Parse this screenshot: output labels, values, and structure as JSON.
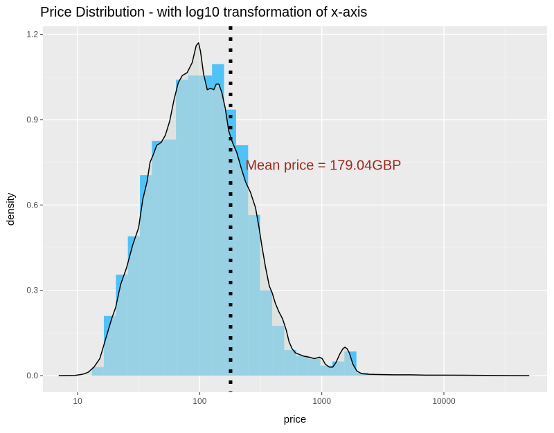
{
  "chart_data": {
    "type": "bar",
    "title": "Price Distribution - with log10 transformation of x-axis",
    "xlabel": "price",
    "ylabel": "density",
    "x_scale": "log10",
    "xlim": [
      5.2,
      70000
    ],
    "ylim": [
      -0.058,
      1.228
    ],
    "x_ticks": [
      10,
      100,
      1000,
      10000
    ],
    "x_tick_labels": [
      "10",
      "100",
      "1000",
      "10000"
    ],
    "y_ticks": [
      0.0,
      0.3,
      0.6,
      0.9,
      1.2
    ],
    "y_tick_labels": [
      "0.0",
      "0.3",
      "0.6",
      "0.9",
      "1.2"
    ],
    "grid": true,
    "histogram": {
      "name": "histogram",
      "color": "#4FC3F7",
      "bins": [
        {
          "from": 13.1,
          "to": 16.4,
          "value": 0.03
        },
        {
          "from": 16.4,
          "to": 20.6,
          "value": 0.21
        },
        {
          "from": 20.6,
          "to": 25.8,
          "value": 0.355
        },
        {
          "from": 25.8,
          "to": 32.4,
          "value": 0.49
        },
        {
          "from": 32.4,
          "to": 40.6,
          "value": 0.705
        },
        {
          "from": 40.6,
          "to": 50.9,
          "value": 0.825
        },
        {
          "from": 50.9,
          "to": 63.9,
          "value": 0.83
        },
        {
          "from": 63.9,
          "to": 80.2,
          "value": 1.04
        },
        {
          "from": 80.2,
          "to": 100.6,
          "value": 1.055
        },
        {
          "from": 100.6,
          "to": 126.2,
          "value": 1.055
        },
        {
          "from": 126.2,
          "to": 158.3,
          "value": 1.095
        },
        {
          "from": 158.3,
          "to": 198.6,
          "value": 0.935
        },
        {
          "from": 198.6,
          "to": 249.2,
          "value": 0.81
        },
        {
          "from": 249.2,
          "to": 312.7,
          "value": 0.565
        },
        {
          "from": 312.7,
          "to": 392.4,
          "value": 0.3
        },
        {
          "from": 392.4,
          "to": 492.3,
          "value": 0.175
        },
        {
          "from": 492.3,
          "to": 617.8,
          "value": 0.09
        },
        {
          "from": 617.8,
          "to": 775.1,
          "value": 0.07
        },
        {
          "from": 775.1,
          "to": 972.6,
          "value": 0.06
        },
        {
          "from": 972.6,
          "to": 1220.3,
          "value": 0.035
        },
        {
          "from": 1220.3,
          "to": 1531.2,
          "value": 0.05
        },
        {
          "from": 1531.2,
          "to": 1921.2,
          "value": 0.085
        },
        {
          "from": 1921.2,
          "to": 2410.8,
          "value": 0.01
        },
        {
          "from": 2410.8,
          "to": 3025,
          "value": 0.005
        },
        {
          "from": 3025,
          "to": 3795.6,
          "value": 0.004
        },
        {
          "from": 3795.6,
          "to": 4762.6,
          "value": 0.003
        },
        {
          "from": 4762.6,
          "to": 5975.9,
          "value": 0.003
        },
        {
          "from": 5975.9,
          "to": 7498.4,
          "value": 0.002
        },
        {
          "from": 7498.4,
          "to": 9408.7,
          "value": 0.002
        }
      ]
    },
    "density": {
      "name": "density",
      "fill": "#D5DDD5",
      "fill_opacity": 0.55,
      "line_color": "#000000",
      "points": [
        [
          7.0,
          0.0
        ],
        [
          9.5,
          0.001
        ],
        [
          11.0,
          0.005
        ],
        [
          12.2,
          0.012
        ],
        [
          13.6,
          0.03
        ],
        [
          15.2,
          0.06
        ],
        [
          17.0,
          0.13
        ],
        [
          19.0,
          0.2
        ],
        [
          20.5,
          0.24
        ],
        [
          22.5,
          0.32
        ],
        [
          25.2,
          0.38
        ],
        [
          28.3,
          0.46
        ],
        [
          31.6,
          0.52
        ],
        [
          34.2,
          0.62
        ],
        [
          37.0,
          0.68
        ],
        [
          39.2,
          0.75
        ],
        [
          41.5,
          0.775
        ],
        [
          44.5,
          0.81
        ],
        [
          48.4,
          0.82
        ],
        [
          52.3,
          0.845
        ],
        [
          56.8,
          0.895
        ],
        [
          61.6,
          0.97
        ],
        [
          66.8,
          1.03
        ],
        [
          72.1,
          1.055
        ],
        [
          78.9,
          1.065
        ],
        [
          86.7,
          1.1
        ],
        [
          93.6,
          1.16
        ],
        [
          97.9,
          1.17
        ],
        [
          101.5,
          1.14
        ],
        [
          107.6,
          1.06
        ],
        [
          115.3,
          1.005
        ],
        [
          122.9,
          1.01
        ],
        [
          130.5,
          1.005
        ],
        [
          136.7,
          1.025
        ],
        [
          143.5,
          1.025
        ],
        [
          151.8,
          0.995
        ],
        [
          161.9,
          0.94
        ],
        [
          172.9,
          0.86
        ],
        [
          185.3,
          0.82
        ],
        [
          200.9,
          0.785
        ],
        [
          218.7,
          0.73
        ],
        [
          238.0,
          0.68
        ],
        [
          260.3,
          0.645
        ],
        [
          286.7,
          0.59
        ],
        [
          306.2,
          0.52
        ],
        [
          323.3,
          0.455
        ],
        [
          346.5,
          0.38
        ],
        [
          371.7,
          0.315
        ],
        [
          393.2,
          0.29
        ],
        [
          415.9,
          0.255
        ],
        [
          444.8,
          0.225
        ],
        [
          477.1,
          0.2
        ],
        [
          511.7,
          0.16
        ],
        [
          538.8,
          0.12
        ],
        [
          570.8,
          0.095
        ],
        [
          607.8,
          0.08
        ],
        [
          652.8,
          0.075
        ],
        [
          718.1,
          0.068
        ],
        [
          790.7,
          0.065
        ],
        [
          869.7,
          0.06
        ],
        [
          956.6,
          0.065
        ],
        [
          1008.1,
          0.06
        ],
        [
          1070.4,
          0.04
        ],
        [
          1154.5,
          0.03
        ],
        [
          1227.5,
          0.03
        ],
        [
          1302.3,
          0.045
        ],
        [
          1399.5,
          0.075
        ],
        [
          1490.1,
          0.095
        ],
        [
          1545.3,
          0.1
        ],
        [
          1609.4,
          0.095
        ],
        [
          1680.4,
          0.08
        ],
        [
          1800.0,
          0.04
        ],
        [
          1941.4,
          0.016
        ],
        [
          2124.1,
          0.007
        ],
        [
          2449.0,
          0.005
        ],
        [
          3000.2,
          0.004
        ],
        [
          3954.8,
          0.003
        ],
        [
          5332.1,
          0.003
        ],
        [
          7193.4,
          0.002
        ],
        [
          9925.2,
          0.002
        ],
        [
          14648.0,
          0.0015
        ],
        [
          22234.0,
          0.001
        ],
        [
          33804.0,
          0.0005
        ],
        [
          50000.0,
          0.0
        ]
      ]
    },
    "mean_line": {
      "x": 179.04,
      "color": "#000000",
      "style": "dotted"
    },
    "annotation": {
      "text": "Mean price =  179.04GBP",
      "x": 180,
      "y": 0.74,
      "color": "#9B2A1E"
    }
  }
}
